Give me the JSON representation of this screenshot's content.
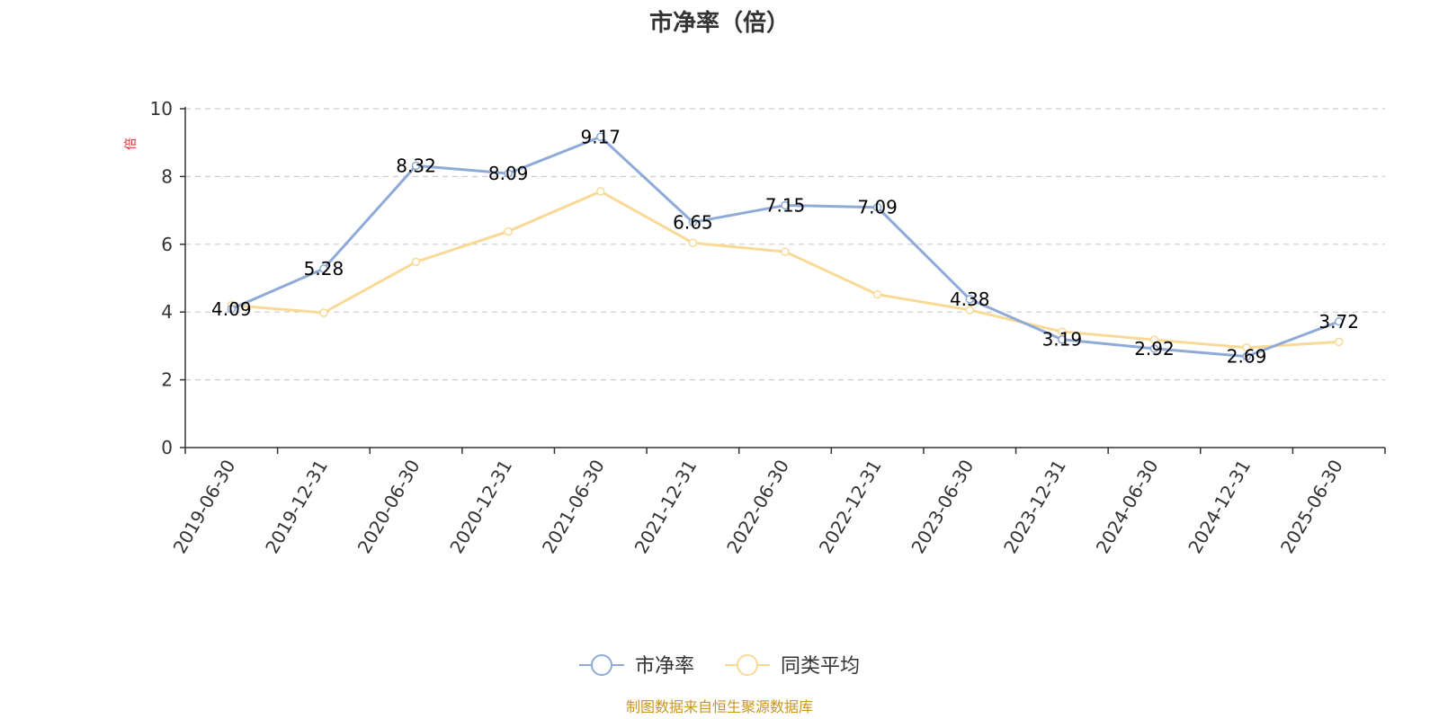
{
  "chart_data": {
    "type": "line",
    "title": "市净率（倍）",
    "ylabel": "倍",
    "ylim": [
      0,
      10
    ],
    "yticks": [
      0,
      2,
      4,
      6,
      8,
      10
    ],
    "grid": true,
    "legend_position": "bottom",
    "categories": [
      "2019-06-30",
      "2019-12-31",
      "2020-06-30",
      "2020-12-31",
      "2021-06-30",
      "2021-12-31",
      "2022-06-30",
      "2022-12-31",
      "2023-06-30",
      "2023-12-31",
      "2024-06-30",
      "2024-12-31",
      "2025-06-30"
    ],
    "series": [
      {
        "name": "市净率",
        "color": "#8eaad6",
        "values": [
          4.09,
          5.28,
          8.32,
          8.09,
          9.17,
          6.65,
          7.15,
          7.09,
          4.38,
          3.19,
          2.92,
          2.69,
          3.72
        ],
        "labels": [
          "4.09",
          "5.28",
          "8.32",
          "8.09",
          "9.17",
          "6.65",
          "7.15",
          "7.09",
          "4.38",
          "3.19",
          "2.92",
          "2.69",
          "3.72"
        ]
      },
      {
        "name": "同类平均",
        "color": "#fad996",
        "values": [
          4.2,
          3.98,
          5.48,
          6.38,
          7.56,
          6.04,
          5.78,
          4.52,
          4.06,
          3.42,
          3.18,
          2.95,
          3.12
        ]
      }
    ]
  },
  "footer": {
    "source": "制图数据来自恒生聚源数据库"
  }
}
